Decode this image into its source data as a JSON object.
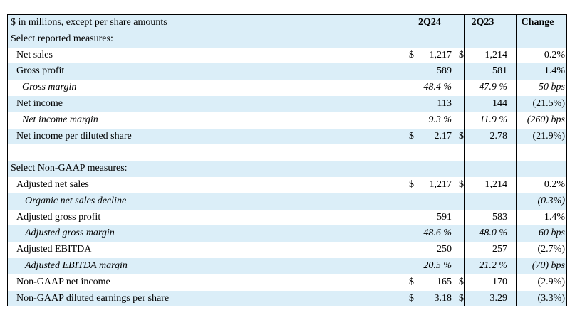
{
  "header": {
    "label": "$ in millions, except per share amounts",
    "col1": "2Q24",
    "col2": "2Q23",
    "col3": "Change"
  },
  "rows": [
    {
      "label": "Select reported measures:",
      "style": "section"
    },
    {
      "label": "Net sales",
      "d1": "$",
      "v1": "1,217",
      "d2": "$",
      "v2": "1,214",
      "chg": "0.2%",
      "style": "ind1"
    },
    {
      "label": "Gross profit",
      "v1": "589",
      "v2": "581",
      "chg": "1.4%",
      "style": "ind1"
    },
    {
      "label": "Gross margin",
      "v1": "48.4 %",
      "v2": "47.9 %",
      "chg": "50 bps",
      "style": "ind2"
    },
    {
      "label": "Net income",
      "v1": "113",
      "v2": "144",
      "chg": "(21.5%)",
      "style": "ind1"
    },
    {
      "label": "Net income margin",
      "v1": "9.3 %",
      "v2": "11.9 %",
      "chg": "(260) bps",
      "style": "ind2"
    },
    {
      "label": "Net income per diluted share",
      "d1": "$",
      "v1": "2.17",
      "d2": "$",
      "v2": "2.78",
      "chg": "(21.9%)",
      "style": "ind1"
    },
    {
      "label": "",
      "style": "blank"
    },
    {
      "label": "Select Non-GAAP measures:",
      "style": "section"
    },
    {
      "label": "Adjusted net sales",
      "d1": "$",
      "v1": "1,217",
      "d2": "$",
      "v2": "1,214",
      "chg": "0.2%",
      "style": "ind1"
    },
    {
      "label": "Organic net sales decline",
      "chg": "(0.3%)",
      "style": "ind2b"
    },
    {
      "label": "Adjusted gross profit",
      "v1": "591",
      "v2": "583",
      "chg": "1.4%",
      "style": "ind1"
    },
    {
      "label": "Adjusted gross margin",
      "v1": "48.6 %",
      "v2": "48.0 %",
      "chg": "60 bps",
      "style": "ind2b"
    },
    {
      "label": "Adjusted EBITDA",
      "v1": "250",
      "v2": "257",
      "chg": "(2.7%)",
      "style": "ind1"
    },
    {
      "label": "Adjusted EBITDA margin",
      "v1": "20.5 %",
      "v2": "21.2 %",
      "chg": "(70) bps",
      "style": "ind2b"
    },
    {
      "label": "Non-GAAP net income",
      "d1": "$",
      "v1": "165",
      "d2": "$",
      "v2": "170",
      "chg": "(2.9%)",
      "style": "ind1"
    },
    {
      "label": "Non-GAAP diluted earnings per share",
      "d1": "$",
      "v1": "3.18",
      "d2": "$",
      "v2": "3.29",
      "chg": "(3.3%)",
      "style": "ind1"
    }
  ]
}
